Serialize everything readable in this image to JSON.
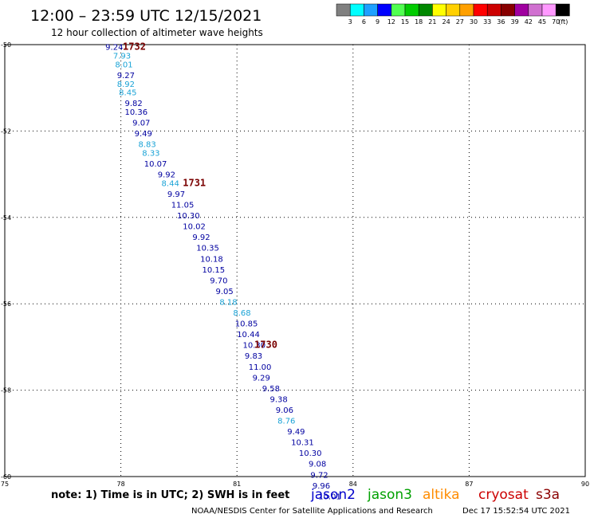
{
  "header": {
    "title": "12:00 – 23:59 UTC 12/15/2021",
    "subtitle": "12 hour collection of altimeter wave heights"
  },
  "colors": {
    "jason2": "#0000cc",
    "jason3": "#00a000",
    "altika": "#ff8c00",
    "cryosat": "#cc0000",
    "s3a": "#8b0000",
    "light_values": "#1aa3d6",
    "dark_values": "#0000a0",
    "time_labels": "#7a0000"
  },
  "color_scale": {
    "labels": [
      "3",
      "6",
      "9",
      "12",
      "15",
      "18",
      "21",
      "24",
      "27",
      "30",
      "33",
      "36",
      "39",
      "42",
      "45",
      "70"
    ],
    "unit": "(ft)",
    "swatches": [
      "#808080",
      "#00ffff",
      "#1ea0ff",
      "#0000ff",
      "#50ff50",
      "#00cc00",
      "#008800",
      "#ffff00",
      "#ffd000",
      "#ffa000",
      "#ff0000",
      "#cc0000",
      "#880000",
      "#a000a0",
      "#d070d0",
      "#ff99ff",
      "#000000"
    ]
  },
  "note": "note: 1) Time is in UTC; 2) SWH is in feet",
  "satellites": [
    {
      "name": "jason2",
      "color": "#0000cc"
    },
    {
      "name": "jason3",
      "color": "#00a000"
    },
    {
      "name": "altika",
      "color": "#ff8c00"
    },
    {
      "name": "cryosat",
      "color": "#cc0000"
    },
    {
      "name": "s3a",
      "color": "#8b0000"
    }
  ],
  "credit": "NOAA/NESDIS Center for Satellite Applications and Research",
  "timestamp": "Dec 17 15:52:54 UTC 2021",
  "chart_data": {
    "type": "scatter",
    "xlim": [
      75,
      90
    ],
    "ylim": [
      -60,
      -50
    ],
    "xticks": [
      75,
      78,
      81,
      84,
      87,
      90
    ],
    "yticks": [
      -50,
      -52,
      -54,
      -56,
      -58,
      -60
    ],
    "ytick_labels": [
      "-50",
      "-52",
      "-54",
      "-56",
      "-58",
      "-60"
    ],
    "grid": true,
    "points": [
      {
        "lon": 77.6,
        "lat": -50.05,
        "text": "9.24",
        "tone": "dark"
      },
      {
        "lon": 77.8,
        "lat": -50.25,
        "text": "7.93",
        "tone": "light"
      },
      {
        "lon": 77.85,
        "lat": -50.45,
        "text": "8.01",
        "tone": "light"
      },
      {
        "lon": 77.9,
        "lat": -50.7,
        "text": "9.27",
        "tone": "dark"
      },
      {
        "lon": 77.9,
        "lat": -50.9,
        "text": "8.92",
        "tone": "light"
      },
      {
        "lon": 77.95,
        "lat": -51.1,
        "text": "8.45",
        "tone": "light"
      },
      {
        "lon": 78.1,
        "lat": -51.35,
        "text": "9.82",
        "tone": "dark"
      },
      {
        "lon": 78.1,
        "lat": -51.55,
        "text": "10.36",
        "tone": "dark"
      },
      {
        "lon": 78.3,
        "lat": -51.8,
        "text": "9.07",
        "tone": "dark"
      },
      {
        "lon": 78.35,
        "lat": -52.05,
        "text": "9.49",
        "tone": "dark"
      },
      {
        "lon": 78.45,
        "lat": -52.3,
        "text": "8.83",
        "tone": "light"
      },
      {
        "lon": 78.55,
        "lat": -52.5,
        "text": "8.33",
        "tone": "light"
      },
      {
        "lon": 78.6,
        "lat": -52.75,
        "text": "10.07",
        "tone": "dark"
      },
      {
        "lon": 78.95,
        "lat": -53.0,
        "text": "9.92",
        "tone": "dark"
      },
      {
        "lon": 79.05,
        "lat": -53.2,
        "text": "8.44",
        "tone": "light"
      },
      {
        "lon": 79.2,
        "lat": -53.45,
        "text": "9.97",
        "tone": "dark"
      },
      {
        "lon": 79.3,
        "lat": -53.7,
        "text": "11.05",
        "tone": "dark"
      },
      {
        "lon": 79.45,
        "lat": -53.95,
        "text": "10.30",
        "tone": "dark"
      },
      {
        "lon": 79.6,
        "lat": -54.2,
        "text": "10.02",
        "tone": "dark"
      },
      {
        "lon": 79.85,
        "lat": -54.45,
        "text": "9.92",
        "tone": "dark"
      },
      {
        "lon": 79.95,
        "lat": -54.7,
        "text": "10.35",
        "tone": "dark"
      },
      {
        "lon": 80.05,
        "lat": -54.95,
        "text": "10.18",
        "tone": "dark"
      },
      {
        "lon": 80.1,
        "lat": -55.2,
        "text": "10.15",
        "tone": "dark"
      },
      {
        "lon": 80.3,
        "lat": -55.45,
        "text": "9.70",
        "tone": "dark"
      },
      {
        "lon": 80.45,
        "lat": -55.7,
        "text": "9.05",
        "tone": "dark"
      },
      {
        "lon": 80.55,
        "lat": -55.95,
        "text": "8.18",
        "tone": "light"
      },
      {
        "lon": 80.9,
        "lat": -56.2,
        "text": "8.68",
        "tone": "light"
      },
      {
        "lon": 80.95,
        "lat": -56.45,
        "text": "10.85",
        "tone": "dark"
      },
      {
        "lon": 81.0,
        "lat": -56.7,
        "text": "10.44",
        "tone": "dark"
      },
      {
        "lon": 81.15,
        "lat": -56.95,
        "text": "10.30",
        "tone": "dark"
      },
      {
        "lon": 81.2,
        "lat": -57.2,
        "text": "9.83",
        "tone": "dark"
      },
      {
        "lon": 81.3,
        "lat": -57.45,
        "text": "11.00",
        "tone": "dark"
      },
      {
        "lon": 81.4,
        "lat": -57.7,
        "text": "9.29",
        "tone": "dark"
      },
      {
        "lon": 81.65,
        "lat": -57.95,
        "text": "9.58",
        "tone": "dark"
      },
      {
        "lon": 81.85,
        "lat": -58.2,
        "text": "9.38",
        "tone": "dark"
      },
      {
        "lon": 82.0,
        "lat": -58.45,
        "text": "9.06",
        "tone": "dark"
      },
      {
        "lon": 82.05,
        "lat": -58.7,
        "text": "8.76",
        "tone": "light"
      },
      {
        "lon": 82.3,
        "lat": -58.95,
        "text": "9.49",
        "tone": "dark"
      },
      {
        "lon": 82.4,
        "lat": -59.2,
        "text": "10.31",
        "tone": "dark"
      },
      {
        "lon": 82.6,
        "lat": -59.45,
        "text": "10.30",
        "tone": "dark"
      },
      {
        "lon": 82.85,
        "lat": -59.7,
        "text": "9.08",
        "tone": "dark"
      },
      {
        "lon": 82.9,
        "lat": -59.95,
        "text": "9.72",
        "tone": "dark"
      },
      {
        "lon": 82.95,
        "lat": -60.2,
        "text": "9.96",
        "tone": "dark"
      },
      {
        "lon": 83.1,
        "lat": -60.45,
        "text": "10.01",
        "tone": "dark"
      }
    ],
    "time_labels": [
      {
        "lon": 78.05,
        "lat": -50.05,
        "text": "1732"
      },
      {
        "lon": 79.6,
        "lat": -53.2,
        "text": "1731"
      },
      {
        "lon": 81.45,
        "lat": -56.95,
        "text": "1730"
      }
    ]
  }
}
